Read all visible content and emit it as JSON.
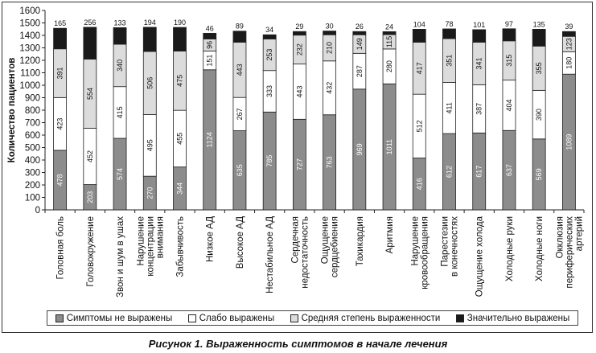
{
  "chart_data": {
    "type": "bar",
    "stacked": true,
    "title": "",
    "ylabel": "Количество пациентов",
    "xlabel": "",
    "ylim": [
      0,
      1600
    ],
    "yticks": [
      0,
      100,
      200,
      300,
      400,
      500,
      600,
      700,
      800,
      900,
      1000,
      1100,
      1200,
      1300,
      1400,
      1500,
      1600
    ],
    "grid": false,
    "legend_position": "bottom",
    "categories": [
      "Головная боль",
      "Головокружение",
      "Звон и шум в ушах",
      "Нарушение концентрации внимания",
      "Забывчивость",
      "Низкое АД",
      "Высокое АД",
      "Нестабильное АД",
      "Сердечная недостаточность",
      "Ощущение сердцебиения",
      "Тахикардия",
      "Аритмия",
      "Нарушение кровообращения",
      "Парестезии в конечностях",
      "Ощущение холода",
      "Холодные руки",
      "Холодные ноги",
      "Окклюзия периферических артерий"
    ],
    "category_lines": [
      [
        "Головная боль"
      ],
      [
        "Головокружение"
      ],
      [
        "Звон и шум в ушах"
      ],
      [
        "Нарушение",
        "концентрации",
        "внимания"
      ],
      [
        "Забывчивость"
      ],
      [
        "Низкое АД"
      ],
      [
        "Высокое АД"
      ],
      [
        "Нестабильное АД"
      ],
      [
        "Сердечная",
        "недостаточность"
      ],
      [
        "Ощущение",
        "сердцебиения"
      ],
      [
        "Тахикардия"
      ],
      [
        "Аритмия"
      ],
      [
        "Нарушение",
        "кровообращения"
      ],
      [
        "Парестезии",
        "в конечностях"
      ],
      [
        "Ощущение холода"
      ],
      [
        "Холодные руки"
      ],
      [
        "Холодные ноги"
      ],
      [
        "Окклюзия",
        "периферических",
        "артерий"
      ]
    ],
    "series": [
      {
        "name": "Симптомы не выражены",
        "color": "#8c8c8c",
        "values": [
          478,
          203,
          574,
          270,
          344,
          1124,
          635,
          785,
          727,
          763,
          969,
          1011,
          416,
          612,
          617,
          637,
          569,
          1089
        ]
      },
      {
        "name": "Слабо выражены",
        "color": "#ffffff",
        "values": [
          423,
          452,
          415,
          495,
          455,
          151,
          267,
          333,
          443,
          432,
          287,
          280,
          512,
          411,
          387,
          404,
          390,
          180
        ]
      },
      {
        "name": "Средняя степень выраженности",
        "color": "#dcdcdc",
        "values": [
          391,
          554,
          340,
          506,
          475,
          96,
          443,
          253,
          232,
          210,
          149,
          115,
          417,
          351,
          341,
          315,
          355,
          123
        ]
      },
      {
        "name": "Значительно выражены",
        "color": "#1a1a1a",
        "values": [
          165,
          256,
          133,
          194,
          190,
          46,
          89,
          34,
          29,
          30,
          26,
          24,
          104,
          78,
          101,
          97,
          135,
          39
        ]
      }
    ]
  },
  "caption": "Рисунок 1. Выраженность симптомов в начале лечения"
}
